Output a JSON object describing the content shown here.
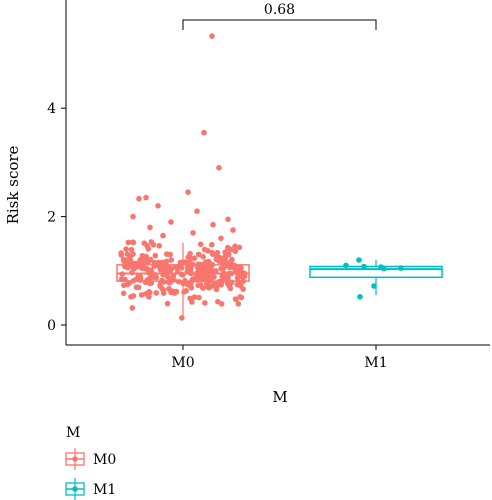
{
  "chart_data": {
    "type": "boxplot",
    "title": "",
    "xlabel": "M",
    "ylabel": "Risk score",
    "ylim": [
      -0.2,
      5.5
    ],
    "yticks": [
      0,
      2,
      4
    ],
    "categories": [
      "M0",
      "M1"
    ],
    "colors": {
      "M0": "#F8766D",
      "M1": "#00BFC4"
    },
    "boxes": [
      {
        "name": "M0",
        "q1": 0.81,
        "median": 0.95,
        "q3": 1.11,
        "whisker_low": 0.1,
        "whisker_high": 1.52
      },
      {
        "name": "M1",
        "q1": 0.88,
        "median": 1.03,
        "q3": 1.08,
        "whisker_low": 0.55,
        "whisker_high": 1.2
      }
    ],
    "outliers_M0": [
      5.33,
      3.55,
      2.9,
      2.45,
      2.35,
      2.33,
      2.2,
      2.1,
      2.0,
      1.95,
      1.9,
      1.85,
      1.8,
      1.75,
      1.7,
      1.65,
      1.6
    ],
    "points_M1": [
      1.2,
      1.1,
      1.08,
      1.07,
      1.05,
      1.04,
      0.72,
      0.52
    ],
    "comparison": {
      "from": "M0",
      "to": "M1",
      "label": "0.68"
    },
    "legend": {
      "title": "M",
      "position": "bottom-left",
      "entries": [
        "M0",
        "M1"
      ]
    }
  }
}
